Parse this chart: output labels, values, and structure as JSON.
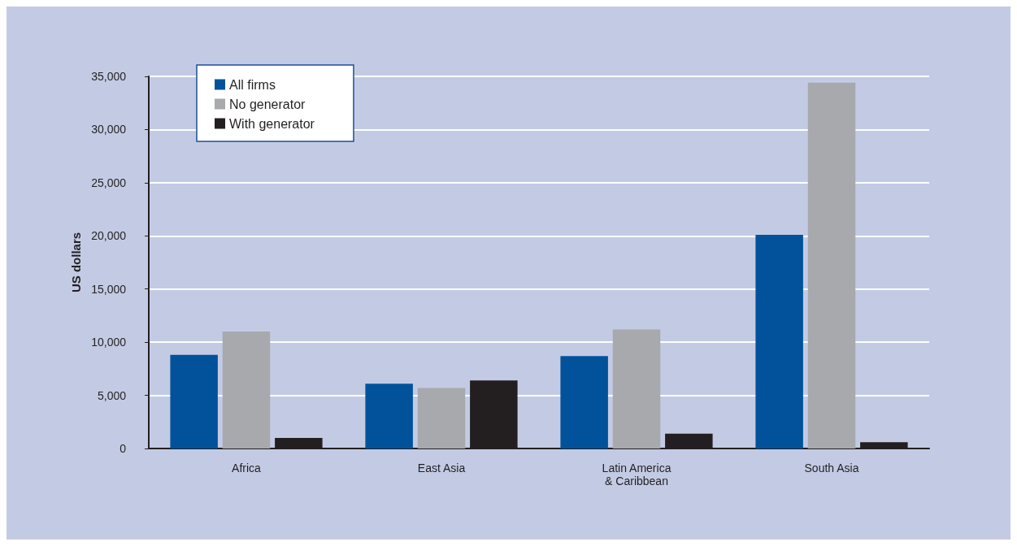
{
  "chart_data": {
    "type": "bar",
    "ylabel": "US dollars",
    "categories": [
      "Africa",
      "East Asia",
      "Latin America\n& Caribbean",
      "South Asia"
    ],
    "series": [
      {
        "name": "All firms",
        "color": "#02529b",
        "values": [
          8800,
          6100,
          8700,
          20100
        ]
      },
      {
        "name": "No generator",
        "color": "#a8a9ad",
        "values": [
          11000,
          5700,
          11200,
          34400
        ]
      },
      {
        "name": "With generator",
        "color": "#231f20",
        "values": [
          1000,
          6400,
          1400,
          600
        ]
      }
    ],
    "ylim": [
      0,
      35000
    ],
    "yticks": [
      0,
      {
        "value": 5000,
        "label": "5,000"
      },
      {
        "value": 10000,
        "label": "10,000"
      },
      {
        "value": 15000,
        "label": "15,000"
      },
      {
        "value": 20000,
        "label": "20,000"
      },
      {
        "value": 25000,
        "label": "25,000"
      },
      {
        "value": 30000,
        "label": "30,000"
      },
      {
        "value": 35000,
        "label": "35,000"
      }
    ],
    "grid": "y",
    "legend": "top left"
  }
}
